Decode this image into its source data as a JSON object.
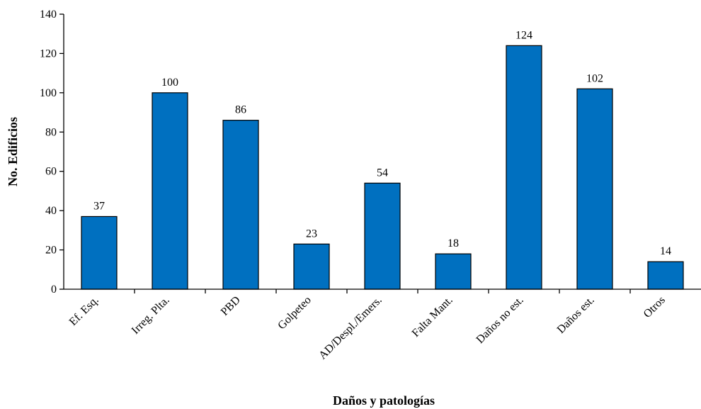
{
  "chart_data": {
    "type": "bar",
    "categories": [
      "Ef. Esq.",
      "Irreg. Plta.",
      "PBD",
      "Golpeteo",
      "AD/Despl./Emers.",
      "Falta Mant.",
      "Daños no est.",
      "Daños est.",
      "Otros"
    ],
    "values": [
      37,
      100,
      86,
      23,
      54,
      18,
      124,
      102,
      14
    ],
    "title": "",
    "xlabel": "Daños y patologías",
    "ylabel": "No. Edificios",
    "ylim": [
      0,
      140
    ],
    "yticks": [
      0,
      20,
      40,
      60,
      80,
      100,
      120,
      140
    ],
    "bar_color": "#0070C0",
    "grid": false,
    "legend": "none"
  }
}
